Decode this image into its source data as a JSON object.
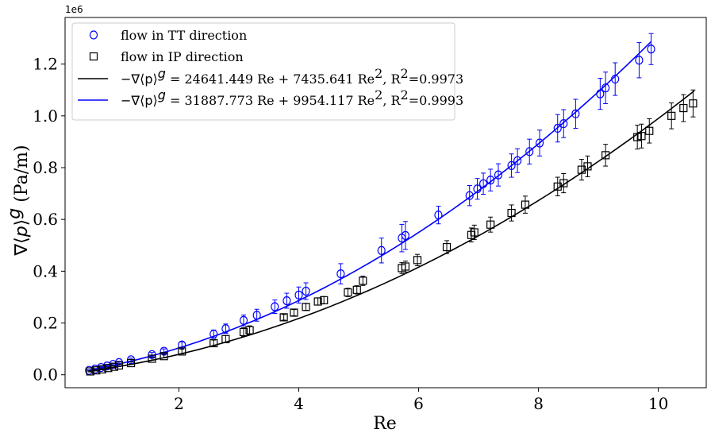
{
  "chart_data": {
    "type": "scatter",
    "xlabel": "Re",
    "ylabel": "∇⟨p⟩^g (Pa/m)",
    "y_offset_label": "1e6",
    "xlim": [
      0.1,
      10.8
    ],
    "ylim": [
      -0.05,
      1.38
    ],
    "xticks": [
      2,
      4,
      6,
      8,
      10
    ],
    "yticks": [
      0.0,
      0.2,
      0.4,
      0.6,
      0.8,
      1.0,
      1.2
    ],
    "yticklabels": [
      "0.0",
      "0.2",
      "0.4",
      "0.6",
      "0.8",
      "1.0",
      "1.2"
    ],
    "grid": false,
    "legend_position": "top-left",
    "series": [
      {
        "name": "flow in TT direction",
        "marker": "circle",
        "color": "#0000ff",
        "x": [
          0.5,
          0.6,
          0.7,
          0.8,
          0.9,
          1.0,
          1.2,
          1.55,
          1.75,
          2.05,
          2.58,
          2.78,
          3.08,
          3.3,
          3.6,
          3.8,
          4.0,
          4.12,
          4.7,
          5.38,
          5.72,
          5.78,
          6.33,
          6.85,
          6.98,
          7.08,
          7.2,
          7.33,
          7.55,
          7.65,
          7.85,
          8.02,
          8.32,
          8.42,
          8.62,
          9.03,
          9.12,
          9.28,
          9.68,
          9.88
        ],
        "y": [
          0.017,
          0.022,
          0.028,
          0.034,
          0.04,
          0.047,
          0.058,
          0.078,
          0.091,
          0.115,
          0.157,
          0.178,
          0.21,
          0.23,
          0.263,
          0.286,
          0.308,
          0.323,
          0.39,
          0.48,
          0.528,
          0.538,
          0.617,
          0.692,
          0.718,
          0.738,
          0.752,
          0.772,
          0.808,
          0.827,
          0.862,
          0.895,
          0.952,
          0.97,
          1.008,
          1.085,
          1.108,
          1.142,
          1.215,
          1.258
        ],
        "yerr": [
          0.002,
          0.002,
          0.003,
          0.003,
          0.004,
          0.005,
          0.006,
          0.008,
          0.009,
          0.012,
          0.016,
          0.018,
          0.021,
          0.023,
          0.026,
          0.029,
          0.031,
          0.032,
          0.039,
          0.048,
          0.053,
          0.054,
          0.034,
          0.039,
          0.04,
          0.041,
          0.042,
          0.043,
          0.045,
          0.046,
          0.048,
          0.05,
          0.053,
          0.054,
          0.056,
          0.06,
          0.061,
          0.063,
          0.068,
          0.06
        ]
      },
      {
        "name": "flow in IP direction",
        "marker": "square",
        "color": "#000000",
        "x": [
          0.52,
          0.62,
          0.72,
          0.82,
          0.92,
          1.0,
          1.2,
          1.55,
          1.75,
          2.05,
          2.58,
          2.78,
          3.08,
          3.18,
          3.75,
          3.92,
          4.12,
          4.32,
          4.42,
          4.82,
          4.97,
          5.07,
          5.72,
          5.78,
          5.98,
          6.47,
          6.88,
          6.93,
          7.2,
          7.55,
          7.78,
          8.32,
          8.42,
          8.72,
          8.82,
          9.12,
          9.65,
          9.72,
          9.85,
          10.22,
          10.42,
          10.58
        ],
        "y": [
          0.013,
          0.017,
          0.021,
          0.026,
          0.031,
          0.036,
          0.045,
          0.062,
          0.072,
          0.09,
          0.122,
          0.138,
          0.165,
          0.172,
          0.222,
          0.24,
          0.262,
          0.283,
          0.288,
          0.318,
          0.328,
          0.363,
          0.412,
          0.418,
          0.443,
          0.493,
          0.54,
          0.55,
          0.58,
          0.625,
          0.657,
          0.727,
          0.74,
          0.792,
          0.805,
          0.848,
          0.918,
          0.922,
          0.942,
          1.0,
          1.03,
          1.048
        ],
        "yerr": [
          0.002,
          0.002,
          0.002,
          0.003,
          0.003,
          0.004,
          0.005,
          0.006,
          0.007,
          0.009,
          0.012,
          0.014,
          0.017,
          0.017,
          0.011,
          0.012,
          0.013,
          0.014,
          0.014,
          0.016,
          0.016,
          0.018,
          0.021,
          0.021,
          0.022,
          0.025,
          0.027,
          0.028,
          0.029,
          0.031,
          0.033,
          0.036,
          0.037,
          0.04,
          0.04,
          0.042,
          0.046,
          0.046,
          0.047,
          0.05,
          0.052,
          0.052
        ]
      }
    ],
    "fits": [
      {
        "label_prefix": "−∇⟨p⟩",
        "label_sup": "g",
        "label_rest": " = 24641.449 Re + 7435.641 Re",
        "label_sup2": "2",
        "label_r": ", R",
        "label_sup3": "2",
        "label_end": "=0.9973",
        "color": "#000000",
        "a": 24641.449,
        "b": 7435.641,
        "x_range": [
          0.5,
          10.6
        ]
      },
      {
        "label_prefix": "−∇⟨p⟩",
        "label_sup": "g",
        "label_rest": " = 31887.773 Re + 9954.117 Re",
        "label_sup2": "2",
        "label_r": ", R",
        "label_sup3": "2",
        "label_end": "=0.9993",
        "color": "#0000ff",
        "a": 31887.773,
        "b": 9954.117,
        "x_range": [
          0.5,
          9.88
        ]
      }
    ]
  }
}
